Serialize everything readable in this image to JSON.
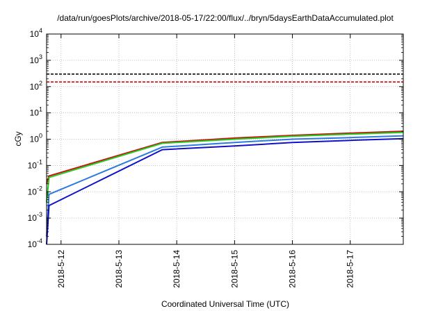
{
  "chart_data": {
    "type": "line",
    "title": "/data/run/goesPlots/archive/2018-05-17/22:00/flux/../bryn/5daysEarthDataAccumulated.plot",
    "xlabel": "Coordinated Universal Time (UTC)",
    "ylabel": "cGy",
    "yscale": "log",
    "ylim": [
      0.0001,
      10000
    ],
    "xlim": [
      "2018-05-11T18:00",
      "2018-05-17T22:00"
    ],
    "grid": true,
    "ytick_labels": [
      {
        "base": "10",
        "exp": "-4"
      },
      {
        "base": "10",
        "exp": "-3"
      },
      {
        "base": "10",
        "exp": "-2"
      },
      {
        "base": "10",
        "exp": "-1"
      },
      {
        "base": "10",
        "exp": "0"
      },
      {
        "base": "10",
        "exp": "1"
      },
      {
        "base": "10",
        "exp": "2"
      },
      {
        "base": "10",
        "exp": "3"
      },
      {
        "base": "10",
        "exp": "4"
      }
    ],
    "xticks": [
      "2018-5-12",
      "2018-5-13",
      "2018-5-14",
      "2018-5-15",
      "2018-5-16",
      "2018-5-17"
    ],
    "thresholds": [
      {
        "value": 300,
        "color": "#000000",
        "style": "dashed"
      },
      {
        "value": 150,
        "color": "#e00000",
        "style": "dashed"
      }
    ],
    "series": [
      {
        "color": "#cc1010",
        "points": [
          [
            "2018-05-11T18:00",
            0.02
          ],
          [
            "2018-05-11T19:00",
            0.04
          ],
          [
            "2018-05-13T18:00",
            0.75
          ],
          [
            "2018-05-15T00:00",
            1.1
          ],
          [
            "2018-05-16T00:00",
            1.4
          ],
          [
            "2018-05-17T00:00",
            1.7
          ],
          [
            "2018-05-17T22:00",
            2.0
          ]
        ]
      },
      {
        "color": "#22cc22",
        "points": [
          [
            "2018-05-11T18:00",
            0.004
          ],
          [
            "2018-05-11T19:00",
            0.035
          ],
          [
            "2018-05-13T18:00",
            0.7
          ],
          [
            "2018-05-15T00:00",
            1.0
          ],
          [
            "2018-05-16T00:00",
            1.3
          ],
          [
            "2018-05-17T00:00",
            1.55
          ],
          [
            "2018-05-17T22:00",
            1.8
          ]
        ]
      },
      {
        "color": "#2a7adf",
        "points": [
          [
            "2018-05-11T18:00",
            0.0002
          ],
          [
            "2018-05-11T19:00",
            0.008
          ],
          [
            "2018-05-13T18:00",
            0.5
          ],
          [
            "2018-05-15T00:00",
            0.75
          ],
          [
            "2018-05-16T00:00",
            1.0
          ],
          [
            "2018-05-17T00:00",
            1.15
          ],
          [
            "2018-05-17T22:00",
            1.35
          ]
        ]
      },
      {
        "color": "#1010c8",
        "points": [
          [
            "2018-05-11T18:00",
            0.0001
          ],
          [
            "2018-05-11T19:00",
            0.003
          ],
          [
            "2018-05-13T18:00",
            0.4
          ],
          [
            "2018-05-15T00:00",
            0.55
          ],
          [
            "2018-05-16T00:00",
            0.75
          ],
          [
            "2018-05-17T00:00",
            0.9
          ],
          [
            "2018-05-17T22:00",
            1.05
          ]
        ]
      }
    ]
  }
}
